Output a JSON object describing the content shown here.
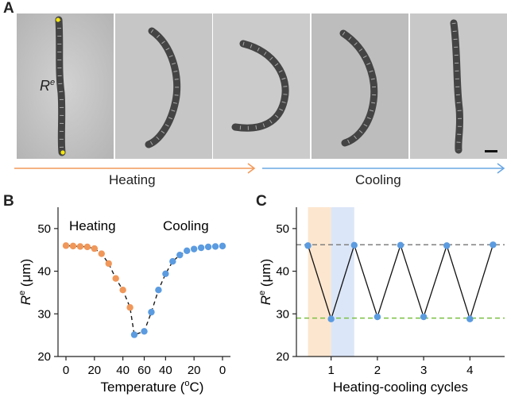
{
  "panels": {
    "a": "A",
    "b": "B",
    "c": "C"
  },
  "panel_a": {
    "r_symbol": "R",
    "r_superscript": "e",
    "heating_label": "Heating",
    "cooling_label": "Cooling",
    "heating_color": "#f29a5a",
    "cooling_color": "#6aa7e3",
    "marker_color": "#f5e60a"
  },
  "chart_data": [
    {
      "type": "scatter",
      "panel": "B",
      "title": "",
      "xlabel": "Temperature (oC)",
      "ylabel": "Re (µm)",
      "ylabel_symbol": "R",
      "ylabel_superscript": "e",
      "ylabel_unit": "(μm)",
      "xlabel_text": "Temperature (",
      "xlabel_sup": "o",
      "xlabel_end": "C)",
      "x_tick_labels": [
        "0",
        "20",
        "40",
        "60",
        "40",
        "20",
        "0"
      ],
      "ylim": [
        20,
        55
      ],
      "yticks": [
        20,
        30,
        40,
        50
      ],
      "annotations": [
        "Heating",
        "Cooling"
      ],
      "series": [
        {
          "name": "Heating",
          "color": "#f0975a",
          "x": [
            0,
            5,
            10,
            15,
            20,
            25,
            30,
            35,
            40,
            45
          ],
          "y": [
            46,
            45.9,
            45.8,
            45.7,
            45.3,
            44.1,
            41.8,
            38.3,
            35.6,
            31.5
          ]
        },
        {
          "name": "Cooling",
          "color": "#5b9be0",
          "x": [
            48,
            55,
            60,
            65,
            70,
            75,
            80,
            85,
            90,
            95,
            100,
            105,
            110
          ],
          "y": [
            25.1,
            25.9,
            30.4,
            35.6,
            39.4,
            42.3,
            43.8,
            44.8,
            45.2,
            45.5,
            45.7,
            45.8,
            45.9
          ]
        }
      ],
      "fit_curve": {
        "style": "dashed",
        "color": "#1a1a1a"
      }
    },
    {
      "type": "line",
      "panel": "C",
      "title": "",
      "xlabel": "Heating-cooling cycles",
      "ylabel": "Re (µm)",
      "ylabel_symbol": "R",
      "ylabel_superscript": "e",
      "ylabel_unit": "(μm)",
      "xticks": [
        1,
        2,
        3,
        4
      ],
      "xlim": [
        0.25,
        4.75
      ],
      "ylim": [
        20,
        55
      ],
      "yticks": [
        20,
        30,
        40,
        50
      ],
      "series": [
        {
          "name": "",
          "color": "#5b9be0",
          "line_color": "#111111",
          "x": [
            0.5,
            1,
            1.5,
            2,
            2.5,
            3,
            3.5,
            4,
            4.5
          ],
          "y": [
            46.0,
            28.8,
            46.1,
            29.3,
            46.1,
            29.3,
            46.0,
            28.8,
            46.2
          ]
        }
      ],
      "reference_lines": [
        {
          "y": 46.2,
          "color": "#808080",
          "style": "dashed"
        },
        {
          "y": 29.0,
          "color": "#7bc043",
          "style": "dashed"
        }
      ],
      "shaded_bands": [
        {
          "x_start": 0.5,
          "x_end": 1.0,
          "color": "#fde6cf"
        },
        {
          "x_start": 1.0,
          "x_end": 1.5,
          "color": "#dbe6f8"
        }
      ]
    }
  ]
}
